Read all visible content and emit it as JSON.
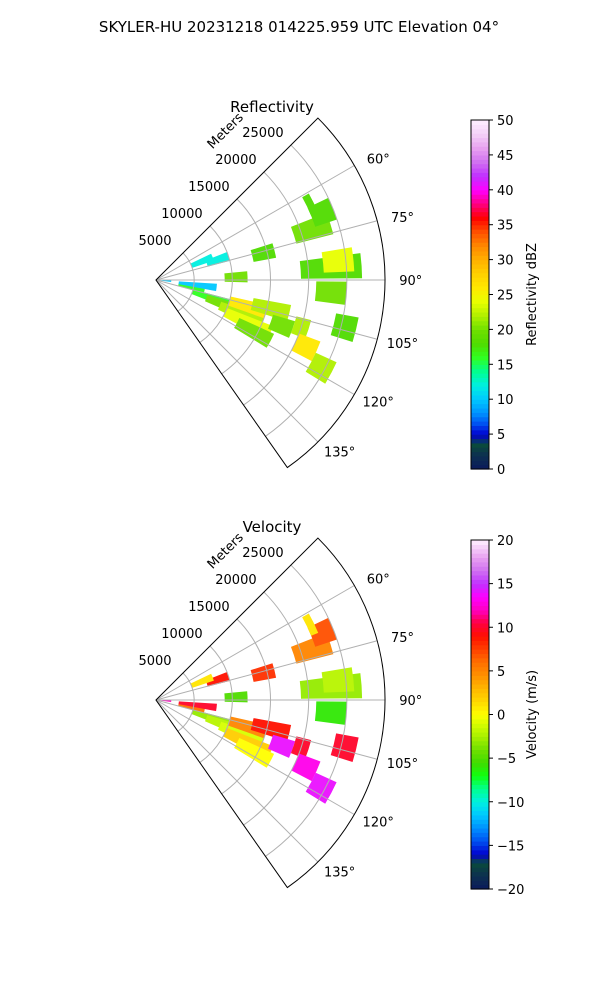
{
  "figure_title": "SKYLER-HU  20231218  014225.959 UTC Elevation 04°",
  "chart_data": [
    {
      "type": "heatmap",
      "subtype": "polar-sector-ppi",
      "title": "Reflectivity",
      "radial_axis_label": "Meters",
      "radial_ticks": [
        5000,
        10000,
        15000,
        20000,
        25000
      ],
      "radial_tick_labels": [
        "5000",
        "10000",
        "15000",
        "20000",
        "25000"
      ],
      "radial_range": [
        0,
        30000
      ],
      "azimuth_range_deg": [
        45,
        145
      ],
      "azimuth_ticks_deg": [
        60,
        75,
        90,
        105,
        120,
        135
      ],
      "azimuth_tick_labels": [
        "60°",
        "75°",
        "90°",
        "105°",
        "120°",
        "135°"
      ],
      "grid": true,
      "colorbar": {
        "label": "Reflectivity dBZ",
        "range": [
          0,
          50
        ],
        "ticks": [
          0,
          5,
          10,
          15,
          20,
          25,
          30,
          35,
          40,
          45,
          50
        ],
        "tick_labels": [
          "0",
          "5",
          "10",
          "15",
          "20",
          "25",
          "30",
          "35",
          "40",
          "45",
          "50"
        ],
        "stops": [
          [
            0,
            "#0b1a5c"
          ],
          [
            2,
            "#0c3050"
          ],
          [
            3.5,
            "#0a4a3c"
          ],
          [
            5,
            "#0000d0"
          ],
          [
            6.5,
            "#0050f0"
          ],
          [
            8,
            "#0090ff"
          ],
          [
            10,
            "#00c8ff"
          ],
          [
            12,
            "#00f0e0"
          ],
          [
            14,
            "#00ff90"
          ],
          [
            16,
            "#30ff20"
          ],
          [
            18,
            "#50dc00"
          ],
          [
            20,
            "#70e000"
          ],
          [
            22,
            "#b0f000"
          ],
          [
            24,
            "#e8ff00"
          ],
          [
            26,
            "#ffe800"
          ],
          [
            28,
            "#ffd000"
          ],
          [
            30,
            "#ffb000"
          ],
          [
            32,
            "#ff8800"
          ],
          [
            34,
            "#ff5000"
          ],
          [
            36,
            "#ff0000"
          ],
          [
            38,
            "#ff0080"
          ],
          [
            40,
            "#ff00ff"
          ],
          [
            42,
            "#c030ff"
          ],
          [
            44,
            "#d070f0"
          ],
          [
            46,
            "#e8a0f0"
          ],
          [
            48,
            "#f4d0f8"
          ],
          [
            50,
            "#fff0ff"
          ]
        ]
      },
      "cells": [
        {
          "az": 102,
          "r": [
            3000,
            6500
          ],
          "value": 16
        },
        {
          "az": 108,
          "r": [
            5000,
            11000
          ],
          "value": 16
        },
        {
          "az": 110,
          "r": [
            7000,
            13000
          ],
          "value": 20
        },
        {
          "az": 112,
          "r": [
            9000,
            15000
          ],
          "value": 22
        },
        {
          "az": 115,
          "r": [
            10000,
            16500
          ],
          "value": 24
        },
        {
          "az": 118,
          "r": [
            12000,
            17000
          ],
          "value": 20
        },
        {
          "az": 106,
          "r": [
            10000,
            15000
          ],
          "value": 26
        },
        {
          "az": 104,
          "r": [
            13000,
            18000
          ],
          "value": 22
        },
        {
          "az": 110,
          "r": [
            16000,
            19000
          ],
          "value": 20
        },
        {
          "az": 108,
          "r": [
            19000,
            21000
          ],
          "value": 22
        },
        {
          "az": 114,
          "r": [
            20000,
            23000
          ],
          "value": 26
        },
        {
          "az": 118,
          "r": [
            23000,
            26000
          ],
          "value": 22
        },
        {
          "az": 104,
          "r": [
            24000,
            27000
          ],
          "value": 18
        },
        {
          "az": 86,
          "r": [
            19000,
            27000
          ],
          "value": 18
        },
        {
          "az": 84,
          "r": [
            22000,
            26000
          ],
          "value": 24
        },
        {
          "az": 94,
          "r": [
            21000,
            25000
          ],
          "value": 20
        },
        {
          "az": 72,
          "r": [
            19000,
            24000
          ],
          "value": 20
        },
        {
          "az": 68,
          "r": [
            22000,
            25000
          ],
          "value": 18
        },
        {
          "az": 76,
          "r": [
            13000,
            16000
          ],
          "value": 18
        },
        {
          "az": 72,
          "r": [
            7000,
            10000
          ],
          "value": 12
        },
        {
          "az": 68,
          "r": [
            5000,
            8000
          ],
          "value": 12
        },
        {
          "az": 97,
          "r": [
            3000,
            8000
          ],
          "value": 10
        },
        {
          "az": 94,
          "r": [
            0,
            2000
          ],
          "value": 10
        },
        {
          "az": 88,
          "r": [
            9000,
            12000
          ],
          "value": 20
        },
        {
          "az": 64,
          "r": [
            22000,
            23000
          ],
          "value": 18
        }
      ]
    },
    {
      "type": "heatmap",
      "subtype": "polar-sector-ppi",
      "title": "Velocity",
      "radial_axis_label": "Meters",
      "radial_ticks": [
        5000,
        10000,
        15000,
        20000,
        25000
      ],
      "radial_tick_labels": [
        "5000",
        "10000",
        "15000",
        "20000",
        "25000"
      ],
      "radial_range": [
        0,
        30000
      ],
      "azimuth_range_deg": [
        45,
        145
      ],
      "azimuth_ticks_deg": [
        60,
        75,
        90,
        105,
        120,
        135
      ],
      "azimuth_tick_labels": [
        "60°",
        "75°",
        "90°",
        "105°",
        "120°",
        "135°"
      ],
      "grid": true,
      "colorbar": {
        "label": "Velocity (m/s)",
        "range": [
          -20,
          20
        ],
        "ticks": [
          -20,
          -15,
          -10,
          -5,
          0,
          5,
          10,
          15,
          20
        ],
        "tick_labels": [
          "−20",
          "−15",
          "−10",
          "−5",
          "0",
          "5",
          "10",
          "15",
          "20"
        ],
        "stops": [
          [
            -20,
            "#0b1a5c"
          ],
          [
            -18.5,
            "#0c3050"
          ],
          [
            -17,
            "#0a4a3c"
          ],
          [
            -16,
            "#0000d0"
          ],
          [
            -14.5,
            "#0050f0"
          ],
          [
            -13,
            "#0090ff"
          ],
          [
            -11.5,
            "#00c8ff"
          ],
          [
            -10,
            "#00f0e0"
          ],
          [
            -8.5,
            "#00ff90"
          ],
          [
            -7,
            "#10ff10"
          ],
          [
            -5.5,
            "#40dc00"
          ],
          [
            -4,
            "#70e000"
          ],
          [
            -2.5,
            "#a8f000"
          ],
          [
            -1,
            "#d8ff00"
          ],
          [
            0,
            "#ffff00"
          ],
          [
            1.5,
            "#ffd800"
          ],
          [
            3,
            "#ffb800"
          ],
          [
            4.5,
            "#ff9000"
          ],
          [
            6,
            "#ff7000"
          ],
          [
            7.5,
            "#ff4000"
          ],
          [
            9,
            "#ff1000"
          ],
          [
            10.5,
            "#ff0040"
          ],
          [
            12,
            "#ff00c0"
          ],
          [
            13.5,
            "#ff00ff"
          ],
          [
            15,
            "#c030ff"
          ],
          [
            16.5,
            "#d070f0"
          ],
          [
            18,
            "#e8a0f0"
          ],
          [
            20,
            "#fff0ff"
          ]
        ]
      },
      "cells": [
        {
          "az": 102,
          "r": [
            3000,
            6500
          ],
          "value": 6
        },
        {
          "az": 108,
          "r": [
            5000,
            11000
          ],
          "value": -3
        },
        {
          "az": 110,
          "r": [
            7000,
            13000
          ],
          "value": -2
        },
        {
          "az": 112,
          "r": [
            9000,
            15000
          ],
          "value": -1
        },
        {
          "az": 115,
          "r": [
            10000,
            16500
          ],
          "value": 2
        },
        {
          "az": 118,
          "r": [
            12000,
            17000
          ],
          "value": 0
        },
        {
          "az": 106,
          "r": [
            10000,
            15000
          ],
          "value": 5
        },
        {
          "az": 104,
          "r": [
            13000,
            18000
          ],
          "value": 9
        },
        {
          "az": 110,
          "r": [
            16000,
            19000
          ],
          "value": 14
        },
        {
          "az": 108,
          "r": [
            19000,
            21000
          ],
          "value": 10
        },
        {
          "az": 114,
          "r": [
            20000,
            23000
          ],
          "value": 13
        },
        {
          "az": 118,
          "r": [
            23000,
            26000
          ],
          "value": 14
        },
        {
          "az": 104,
          "r": [
            24000,
            27000
          ],
          "value": 10
        },
        {
          "az": 86,
          "r": [
            19000,
            27000
          ],
          "value": -3
        },
        {
          "az": 84,
          "r": [
            22000,
            26000
          ],
          "value": -2
        },
        {
          "az": 94,
          "r": [
            21000,
            25000
          ],
          "value": -6
        },
        {
          "az": 72,
          "r": [
            19000,
            24000
          ],
          "value": 5
        },
        {
          "az": 68,
          "r": [
            22000,
            25000
          ],
          "value": 7
        },
        {
          "az": 76,
          "r": [
            13000,
            16000
          ],
          "value": 8
        },
        {
          "az": 72,
          "r": [
            7000,
            10000
          ],
          "value": 9
        },
        {
          "az": 68,
          "r": [
            5000,
            8000
          ],
          "value": 1
        },
        {
          "az": 97,
          "r": [
            3000,
            8000
          ],
          "value": 10
        },
        {
          "az": 94,
          "r": [
            0,
            2000
          ],
          "value": 12
        },
        {
          "az": 88,
          "r": [
            9000,
            12000
          ],
          "value": -5
        },
        {
          "az": 64,
          "r": [
            22000,
            23000
          ],
          "value": 1
        }
      ]
    }
  ]
}
